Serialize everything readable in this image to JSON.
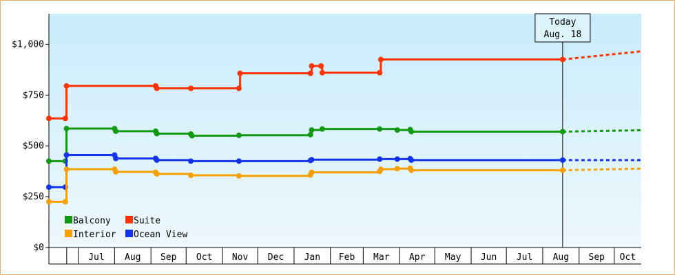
{
  "chart_data": {
    "type": "line",
    "step": true,
    "ylim": [
      0,
      1150
    ],
    "y_ticks": [
      0,
      250,
      500,
      750,
      1000
    ],
    "y_tick_labels": [
      "$0",
      "$250",
      "$500",
      "$750",
      "$1,000"
    ],
    "x_month_labels": [
      "Jul",
      "Aug",
      "Sep",
      "Oct",
      "Nov",
      "Dec",
      "Jan",
      "Feb",
      "Mar",
      "Apr",
      "May",
      "Jun",
      "Jul",
      "Aug",
      "Sep",
      "Oct"
    ],
    "x_range": [
      "2013-06-06",
      "2014-10-24"
    ],
    "today": {
      "line1": "Today",
      "line2": "Aug. 18",
      "date": "2014-08-18"
    },
    "grid": false,
    "legend_position": "bottom-left",
    "series": [
      {
        "name": "Suite",
        "color": "#ff3300",
        "points": [
          [
            "2013-06-06",
            635
          ],
          [
            "2013-06-20",
            635
          ],
          [
            "2013-06-21",
            795
          ],
          [
            "2013-09-05",
            795
          ],
          [
            "2013-09-06",
            783
          ],
          [
            "2013-10-05",
            783
          ],
          [
            "2013-11-15",
            783
          ],
          [
            "2013-11-16",
            857
          ],
          [
            "2014-01-15",
            857
          ],
          [
            "2014-01-16",
            893
          ],
          [
            "2014-01-24",
            893
          ],
          [
            "2014-01-25",
            860
          ],
          [
            "2014-03-15",
            860
          ],
          [
            "2014-03-16",
            925
          ],
          [
            "2014-08-18",
            925
          ]
        ],
        "forecast": [
          [
            "2014-08-18",
            925
          ],
          [
            "2014-10-24",
            965
          ]
        ]
      },
      {
        "name": "Balcony",
        "color": "#119911",
        "points": [
          [
            "2013-06-06",
            425
          ],
          [
            "2013-06-20",
            425
          ],
          [
            "2013-06-21",
            585
          ],
          [
            "2013-08-01",
            585
          ],
          [
            "2013-08-02",
            572
          ],
          [
            "2013-09-05",
            572
          ],
          [
            "2013-09-06",
            560
          ],
          [
            "2013-10-05",
            558
          ],
          [
            "2013-10-06",
            550
          ],
          [
            "2013-11-15",
            552
          ],
          [
            "2014-01-15",
            555
          ],
          [
            "2014-01-16",
            578
          ],
          [
            "2014-01-25",
            583
          ],
          [
            "2014-03-15",
            583
          ],
          [
            "2014-03-30",
            578
          ],
          [
            "2014-04-10",
            580
          ],
          [
            "2014-04-11",
            570
          ],
          [
            "2014-08-18",
            570
          ]
        ],
        "forecast": [
          [
            "2014-08-18",
            570
          ],
          [
            "2014-10-24",
            577
          ]
        ]
      },
      {
        "name": "Ocean View",
        "color": "#1133ee",
        "points": [
          [
            "2013-06-06",
            297
          ],
          [
            "2013-06-20",
            297
          ],
          [
            "2013-06-21",
            455
          ],
          [
            "2013-08-01",
            455
          ],
          [
            "2013-08-02",
            438
          ],
          [
            "2013-09-05",
            438
          ],
          [
            "2013-09-06",
            430
          ],
          [
            "2013-10-05",
            425
          ],
          [
            "2013-11-15",
            425
          ],
          [
            "2014-01-15",
            428
          ],
          [
            "2014-01-16",
            432
          ],
          [
            "2014-03-15",
            435
          ],
          [
            "2014-03-30",
            435
          ],
          [
            "2014-04-10",
            437
          ],
          [
            "2014-04-11",
            430
          ],
          [
            "2014-08-18",
            430
          ]
        ],
        "forecast": [
          [
            "2014-08-18",
            430
          ],
          [
            "2014-10-24",
            430
          ]
        ]
      },
      {
        "name": "Interior",
        "color": "#f5a000",
        "points": [
          [
            "2013-06-06",
            225
          ],
          [
            "2013-06-20",
            225
          ],
          [
            "2013-06-21",
            385
          ],
          [
            "2013-08-01",
            385
          ],
          [
            "2013-08-02",
            372
          ],
          [
            "2013-09-05",
            370
          ],
          [
            "2013-09-06",
            362
          ],
          [
            "2013-10-05",
            355
          ],
          [
            "2013-11-15",
            352
          ],
          [
            "2014-01-15",
            357
          ],
          [
            "2014-01-16",
            370
          ],
          [
            "2014-03-15",
            375
          ],
          [
            "2014-03-16",
            385
          ],
          [
            "2014-03-30",
            388
          ],
          [
            "2014-04-10",
            390
          ],
          [
            "2014-04-11",
            380
          ],
          [
            "2014-08-18",
            380
          ]
        ],
        "forecast": [
          [
            "2014-08-18",
            380
          ],
          [
            "2014-10-24",
            388
          ]
        ]
      }
    ],
    "legend_order": [
      "Balcony",
      "Suite",
      "Interior",
      "Ocean View"
    ]
  }
}
